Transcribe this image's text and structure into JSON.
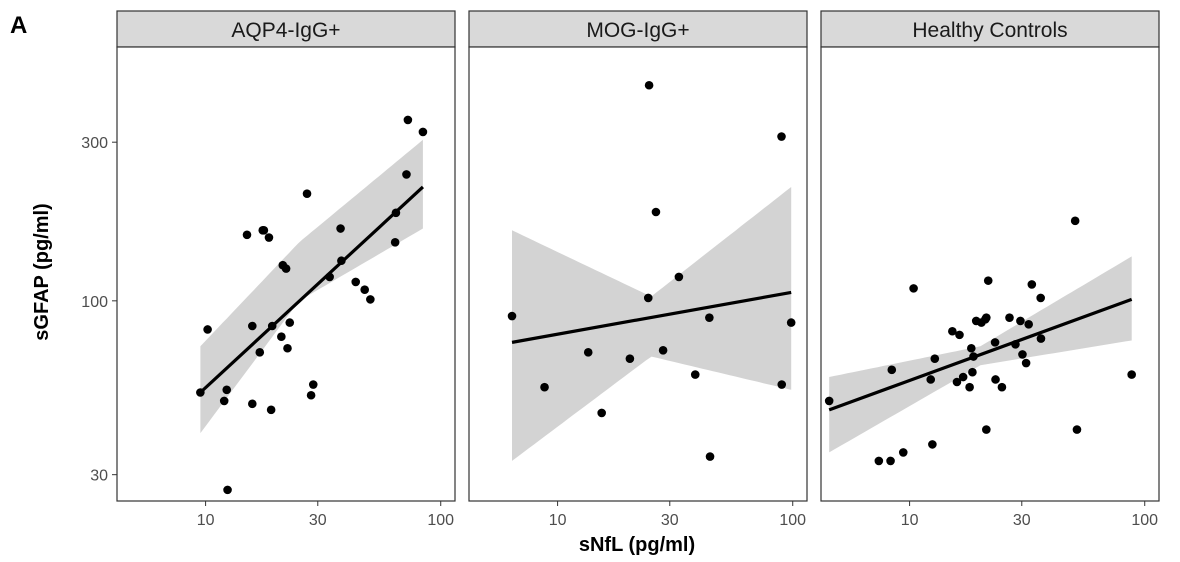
{
  "figure": {
    "panel_tag": "A"
  },
  "chart_data": {
    "type": "scatter",
    "xlabel": "sNfL (pg/ml)",
    "ylabel": "sGFAP (pg/ml)",
    "x_scale": "log10",
    "y_scale": "log10",
    "xlim": [
      4.2,
      115
    ],
    "ylim": [
      25,
      580
    ],
    "x_ticks": [
      10,
      30,
      100
    ],
    "y_ticks": [
      30,
      100,
      300
    ],
    "x_tick_labels": [
      "10",
      "30",
      "100"
    ],
    "y_tick_labels": [
      "30",
      "100",
      "300"
    ],
    "grid": false,
    "colors": {
      "points": "#000000",
      "fit_line": "#000000",
      "ribbon": "#d3d3d3",
      "strip": "#d9d9d9",
      "border": "#333333"
    },
    "panels": [
      {
        "strip": "AQP4-IgG+",
        "points": [
          {
            "x": 9.5,
            "y": 53
          },
          {
            "x": 10.2,
            "y": 82
          },
          {
            "x": 12,
            "y": 50
          },
          {
            "x": 12.3,
            "y": 54
          },
          {
            "x": 12.4,
            "y": 27
          },
          {
            "x": 15,
            "y": 158
          },
          {
            "x": 15.8,
            "y": 84
          },
          {
            "x": 15.8,
            "y": 49
          },
          {
            "x": 17,
            "y": 70
          },
          {
            "x": 17.5,
            "y": 163
          },
          {
            "x": 17.7,
            "y": 163
          },
          {
            "x": 18.6,
            "y": 155
          },
          {
            "x": 19,
            "y": 47
          },
          {
            "x": 19.2,
            "y": 84
          },
          {
            "x": 21,
            "y": 78
          },
          {
            "x": 21.3,
            "y": 128
          },
          {
            "x": 22,
            "y": 125
          },
          {
            "x": 22.3,
            "y": 72
          },
          {
            "x": 22.8,
            "y": 86
          },
          {
            "x": 27,
            "y": 210
          },
          {
            "x": 28.1,
            "y": 52
          },
          {
            "x": 28.7,
            "y": 56
          },
          {
            "x": 33.7,
            "y": 118
          },
          {
            "x": 37.5,
            "y": 165
          },
          {
            "x": 37.8,
            "y": 132
          },
          {
            "x": 43.5,
            "y": 114
          },
          {
            "x": 47.5,
            "y": 108
          },
          {
            "x": 50.2,
            "y": 101
          },
          {
            "x": 64,
            "y": 150
          },
          {
            "x": 64.5,
            "y": 184
          },
          {
            "x": 71.5,
            "y": 240
          },
          {
            "x": 72.5,
            "y": 350
          },
          {
            "x": 84,
            "y": 322
          }
        ],
        "fit": {
          "x": [
            9.5,
            84
          ],
          "y": [
            53,
            220
          ]
        },
        "band": {
          "x": [
            9.5,
            25,
            84
          ],
          "lower": [
            40,
            100,
            165
          ],
          "upper": [
            73,
            150,
            305
          ]
        }
      },
      {
        "strip": "MOG-IgG+",
        "points": [
          {
            "x": 6.4,
            "y": 90
          },
          {
            "x": 8.8,
            "y": 55
          },
          {
            "x": 13.5,
            "y": 70
          },
          {
            "x": 15.4,
            "y": 46
          },
          {
            "x": 20.3,
            "y": 67
          },
          {
            "x": 24.3,
            "y": 102
          },
          {
            "x": 24.5,
            "y": 445
          },
          {
            "x": 26.2,
            "y": 185
          },
          {
            "x": 28.1,
            "y": 71
          },
          {
            "x": 32.8,
            "y": 118
          },
          {
            "x": 38.5,
            "y": 60
          },
          {
            "x": 44.2,
            "y": 89
          },
          {
            "x": 44.5,
            "y": 34
          },
          {
            "x": 89.6,
            "y": 312
          },
          {
            "x": 89.8,
            "y": 56
          },
          {
            "x": 98.5,
            "y": 86
          }
        ],
        "fit": {
          "x": [
            6.4,
            98.5
          ],
          "y": [
            75,
            106
          ]
        },
        "band": {
          "x": [
            6.4,
            25,
            98.5
          ],
          "lower": [
            33,
            68,
            54
          ],
          "upper": [
            163,
            103,
            220
          ]
        }
      },
      {
        "strip": "Healthy Controls",
        "points": [
          {
            "x": 4.55,
            "y": 50
          },
          {
            "x": 7.4,
            "y": 33
          },
          {
            "x": 8.3,
            "y": 33
          },
          {
            "x": 8.4,
            "y": 62
          },
          {
            "x": 9.4,
            "y": 35
          },
          {
            "x": 10.4,
            "y": 109
          },
          {
            "x": 12.3,
            "y": 58
          },
          {
            "x": 12.5,
            "y": 37
          },
          {
            "x": 12.8,
            "y": 67
          },
          {
            "x": 15.2,
            "y": 81
          },
          {
            "x": 15.9,
            "y": 57
          },
          {
            "x": 16.3,
            "y": 79
          },
          {
            "x": 16.9,
            "y": 59
          },
          {
            "x": 18,
            "y": 55
          },
          {
            "x": 18.3,
            "y": 72
          },
          {
            "x": 18.5,
            "y": 61
          },
          {
            "x": 18.7,
            "y": 68
          },
          {
            "x": 19.2,
            "y": 87
          },
          {
            "x": 20.2,
            "y": 86
          },
          {
            "x": 21,
            "y": 88
          },
          {
            "x": 21.2,
            "y": 41
          },
          {
            "x": 21.2,
            "y": 89
          },
          {
            "x": 21.6,
            "y": 115
          },
          {
            "x": 23.1,
            "y": 75
          },
          {
            "x": 23.2,
            "y": 58
          },
          {
            "x": 24.7,
            "y": 55
          },
          {
            "x": 26.6,
            "y": 89
          },
          {
            "x": 28.2,
            "y": 74
          },
          {
            "x": 29.6,
            "y": 87
          },
          {
            "x": 30.2,
            "y": 69
          },
          {
            "x": 31.3,
            "y": 65
          },
          {
            "x": 32.1,
            "y": 85
          },
          {
            "x": 33.1,
            "y": 112
          },
          {
            "x": 36.1,
            "y": 102
          },
          {
            "x": 36.2,
            "y": 77
          },
          {
            "x": 50.6,
            "y": 174
          },
          {
            "x": 51.5,
            "y": 41
          },
          {
            "x": 88,
            "y": 60
          }
        ],
        "fit": {
          "x": [
            4.55,
            88
          ],
          "y": [
            47,
            101
          ]
        },
        "band": {
          "x": [
            4.55,
            20,
            88
          ],
          "lower": [
            35,
            64,
            76
          ],
          "upper": [
            59,
            73,
            136
          ]
        }
      }
    ]
  }
}
